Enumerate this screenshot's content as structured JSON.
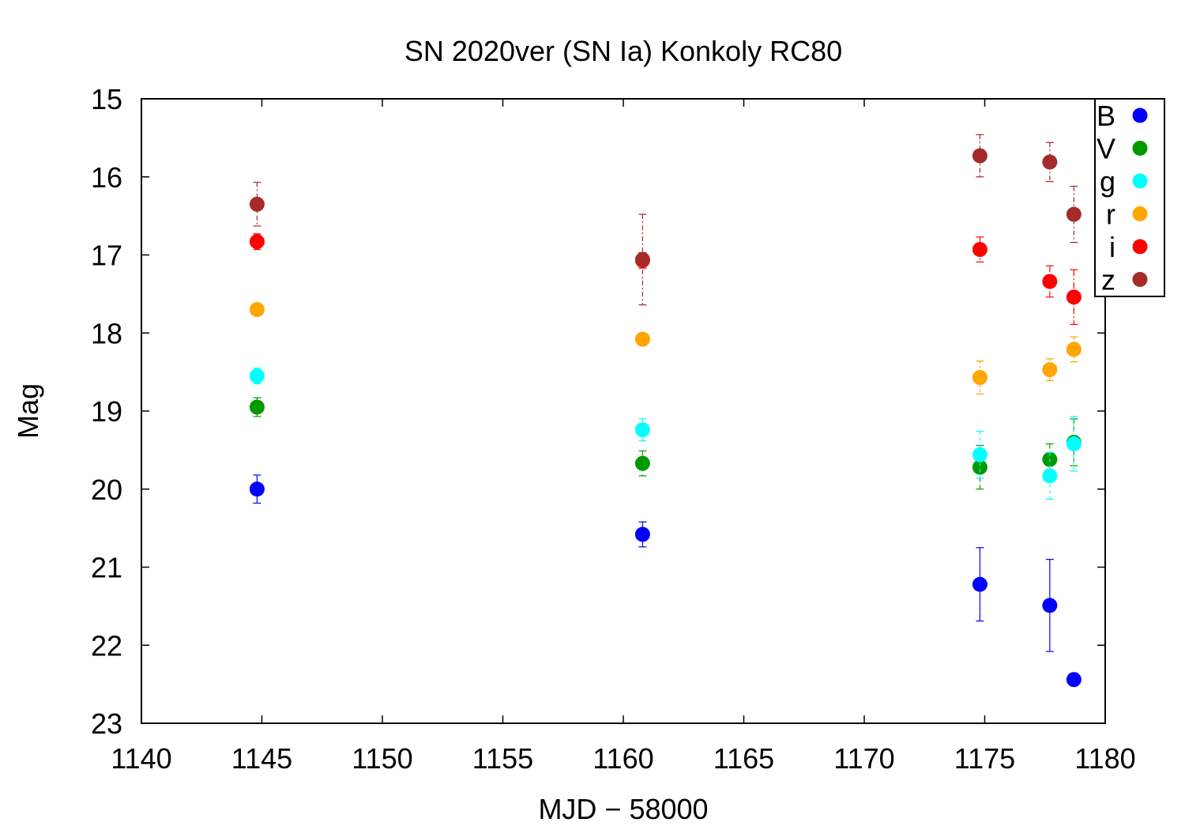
{
  "chart_data": {
    "type": "scatter",
    "title": "SN 2020ver (SN Ia) Konkoly RC80",
    "xlabel": "MJD − 58000",
    "ylabel": "Mag",
    "xlim": [
      1140,
      1180
    ],
    "ylim": [
      23,
      15
    ],
    "y_inverted": true,
    "xticks": [
      1140,
      1145,
      1150,
      1155,
      1160,
      1165,
      1170,
      1175,
      1180
    ],
    "yticks": [
      15,
      16,
      17,
      18,
      19,
      20,
      21,
      22,
      23
    ],
    "grid": false,
    "legend_position": "top-right",
    "series": [
      {
        "name": "B",
        "color": "#0000ff",
        "points": [
          {
            "x": 1144.8,
            "y": 20.0,
            "err": 0.18
          },
          {
            "x": 1160.8,
            "y": 20.58,
            "err": 0.16
          },
          {
            "x": 1174.8,
            "y": 21.22,
            "err": 0.47
          },
          {
            "x": 1177.7,
            "y": 21.49,
            "err": 0.59
          },
          {
            "x": 1178.7,
            "y": 22.44,
            "err": 0.08
          }
        ]
      },
      {
        "name": "V",
        "color": "#009900",
        "points": [
          {
            "x": 1144.8,
            "y": 18.95,
            "err": 0.12
          },
          {
            "x": 1160.8,
            "y": 19.67,
            "err": 0.16
          },
          {
            "x": 1174.8,
            "y": 19.72,
            "err": 0.28
          },
          {
            "x": 1177.7,
            "y": 19.62,
            "err": 0.2
          },
          {
            "x": 1178.7,
            "y": 19.4,
            "err": 0.3
          }
        ]
      },
      {
        "name": "g",
        "color": "#00ffff",
        "points": [
          {
            "x": 1144.8,
            "y": 18.55,
            "err": 0.1
          },
          {
            "x": 1160.8,
            "y": 19.24,
            "err": 0.14
          },
          {
            "x": 1174.8,
            "y": 19.56,
            "err": 0.3
          },
          {
            "x": 1177.7,
            "y": 19.83,
            "err": 0.3
          },
          {
            "x": 1178.7,
            "y": 19.42,
            "err": 0.35
          }
        ]
      },
      {
        "name": "r",
        "color": "#ffa500",
        "points": [
          {
            "x": 1144.8,
            "y": 17.7,
            "err": 0.06
          },
          {
            "x": 1160.8,
            "y": 18.08,
            "err": 0.05
          },
          {
            "x": 1174.8,
            "y": 18.57,
            "err": 0.21
          },
          {
            "x": 1177.7,
            "y": 18.47,
            "err": 0.14
          },
          {
            "x": 1178.7,
            "y": 18.21,
            "err": 0.16
          }
        ]
      },
      {
        "name": "i",
        "color": "#ff0000",
        "points": [
          {
            "x": 1144.8,
            "y": 16.83,
            "err": 0.1
          },
          {
            "x": 1160.8,
            "y": 17.07,
            "err": 0.1
          },
          {
            "x": 1174.8,
            "y": 16.93,
            "err": 0.16
          },
          {
            "x": 1177.7,
            "y": 17.34,
            "err": 0.2
          },
          {
            "x": 1178.7,
            "y": 17.54,
            "err": 0.35
          }
        ]
      },
      {
        "name": "z",
        "color": "#a52a2a",
        "points": [
          {
            "x": 1144.8,
            "y": 16.35,
            "err": 0.28
          },
          {
            "x": 1160.8,
            "y": 17.06,
            "err": 0.58
          },
          {
            "x": 1174.8,
            "y": 15.73,
            "err": 0.27
          },
          {
            "x": 1177.7,
            "y": 15.81,
            "err": 0.25
          },
          {
            "x": 1178.7,
            "y": 16.48,
            "err": 0.36
          }
        ]
      }
    ]
  }
}
